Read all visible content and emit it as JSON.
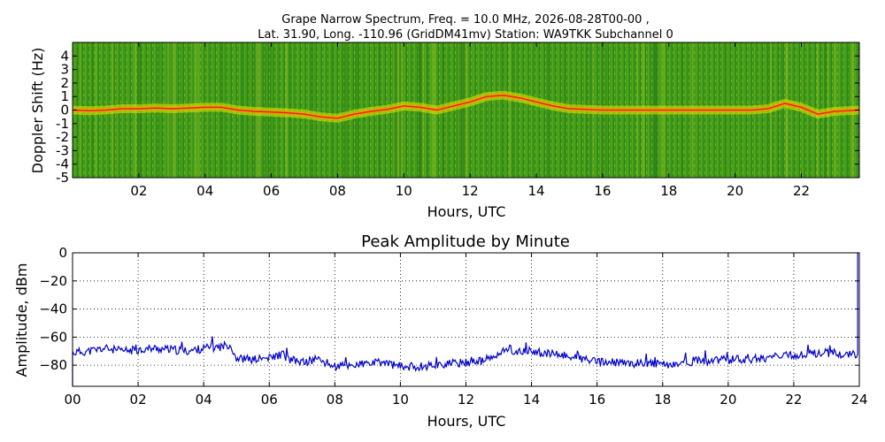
{
  "figure": {
    "title_line1": "Grape Narrow Spectrum, Freq. = 10.0 MHz, 2026-08-28T00-00 ,",
    "title_line2": "Lat.  31.90, Long. -110.96 (GridDM41mv) Station: WA9TKK Subchannel 0"
  },
  "chart_data": [
    {
      "type": "heatmap",
      "title": "",
      "xlabel": "Hours, UTC",
      "ylabel": "Doppler Shift (Hz)",
      "xlim": [
        0,
        23.75
      ],
      "ylim": [
        -5,
        5
      ],
      "xticks": [
        "02",
        "04",
        "06",
        "08",
        "10",
        "12",
        "14",
        "16",
        "18",
        "20",
        "22"
      ],
      "xtick_values": [
        2,
        4,
        6,
        8,
        10,
        12,
        14,
        16,
        18,
        20,
        22
      ],
      "yticks": [
        "4",
        "3",
        "2",
        "1",
        "0",
        "-1",
        "-2",
        "-3",
        "-4",
        "-5"
      ],
      "ytick_values": [
        4,
        3,
        2,
        1,
        0,
        -1,
        -2,
        -3,
        -4,
        -5
      ],
      "background_color": "#3f9a1a",
      "trace_colors": [
        "#e8e800",
        "#ff9900",
        "#e8251a"
      ],
      "trace": [
        {
          "t": 0.0,
          "f": 0.0
        },
        {
          "t": 0.5,
          "f": -0.05
        },
        {
          "t": 1.0,
          "f": 0.0
        },
        {
          "t": 1.5,
          "f": 0.1
        },
        {
          "t": 2.0,
          "f": 0.1
        },
        {
          "t": 2.5,
          "f": 0.15
        },
        {
          "t": 3.0,
          "f": 0.1
        },
        {
          "t": 3.5,
          "f": 0.15
        },
        {
          "t": 4.0,
          "f": 0.2
        },
        {
          "t": 4.5,
          "f": 0.2
        },
        {
          "t": 5.0,
          "f": 0.0
        },
        {
          "t": 5.5,
          "f": -0.1
        },
        {
          "t": 6.0,
          "f": -0.15
        },
        {
          "t": 6.5,
          "f": -0.2
        },
        {
          "t": 7.0,
          "f": -0.3
        },
        {
          "t": 7.5,
          "f": -0.5
        },
        {
          "t": 8.0,
          "f": -0.6
        },
        {
          "t": 8.5,
          "f": -0.3
        },
        {
          "t": 9.0,
          "f": -0.1
        },
        {
          "t": 9.5,
          "f": 0.05
        },
        {
          "t": 10.0,
          "f": 0.3
        },
        {
          "t": 10.5,
          "f": 0.2
        },
        {
          "t": 11.0,
          "f": 0.0
        },
        {
          "t": 11.5,
          "f": 0.3
        },
        {
          "t": 12.0,
          "f": 0.6
        },
        {
          "t": 12.5,
          "f": 1.0
        },
        {
          "t": 13.0,
          "f": 1.1
        },
        {
          "t": 13.5,
          "f": 0.9
        },
        {
          "t": 14.0,
          "f": 0.6
        },
        {
          "t": 14.5,
          "f": 0.3
        },
        {
          "t": 15.0,
          "f": 0.1
        },
        {
          "t": 15.5,
          "f": 0.05
        },
        {
          "t": 16.0,
          "f": 0.0
        },
        {
          "t": 17.0,
          "f": 0.0
        },
        {
          "t": 18.0,
          "f": 0.0
        },
        {
          "t": 19.0,
          "f": 0.0
        },
        {
          "t": 20.0,
          "f": 0.0
        },
        {
          "t": 20.5,
          "f": 0.0
        },
        {
          "t": 21.0,
          "f": 0.1
        },
        {
          "t": 21.5,
          "f": 0.5
        },
        {
          "t": 22.0,
          "f": 0.2
        },
        {
          "t": 22.5,
          "f": -0.3
        },
        {
          "t": 23.0,
          "f": -0.1
        },
        {
          "t": 23.75,
          "f": 0.0
        }
      ]
    },
    {
      "type": "line",
      "title": "Peak Amplitude by Minute",
      "xlabel": "Hours, UTC",
      "ylabel": "Amplitude, dBm",
      "xlim": [
        0,
        24
      ],
      "ylim": [
        -95,
        0
      ],
      "grid": true,
      "xticks": [
        "00",
        "02",
        "04",
        "06",
        "08",
        "10",
        "12",
        "14",
        "16",
        "18",
        "20",
        "22",
        "24"
      ],
      "xtick_values": [
        0,
        2,
        4,
        6,
        8,
        10,
        12,
        14,
        16,
        18,
        20,
        22,
        24
      ],
      "yticks": [
        "0",
        "−20",
        "−40",
        "−60",
        "−80"
      ],
      "ytick_values": [
        0,
        -20,
        -40,
        -60,
        -80
      ],
      "line_color": "#0000cc",
      "series": [
        {
          "x": [
            0.0,
            0.5,
            1.0,
            1.5,
            2.0,
            2.5,
            3.0,
            3.5,
            4.0,
            4.5,
            4.8,
            5.0,
            5.5,
            6.0,
            6.4,
            6.6,
            7.0,
            7.5,
            7.8,
            8.0,
            8.5,
            9.0,
            9.5,
            10.0,
            10.5,
            11.0,
            11.5,
            12.0,
            12.5,
            13.0,
            13.3,
            13.5,
            14.0,
            14.5,
            15.0,
            15.5,
            16.0,
            16.5,
            17.0,
            17.5,
            18.0,
            18.5,
            19.0,
            19.5,
            20.0,
            20.5,
            21.0,
            21.5,
            22.0,
            22.5,
            23.0,
            23.5,
            23.95
          ],
          "y": [
            -71,
            -70,
            -68,
            -70,
            -69,
            -68,
            -69,
            -70,
            -68,
            -67,
            -65,
            -75,
            -76,
            -75,
            -72,
            -76,
            -78,
            -76,
            -79,
            -81,
            -80,
            -79,
            -78,
            -81,
            -81,
            -80,
            -79,
            -78,
            -77,
            -73,
            -67,
            -71,
            -70,
            -72,
            -73,
            -75,
            -78,
            -78,
            -79,
            -78,
            -80,
            -79,
            -77,
            -77,
            -76,
            -76,
            -75,
            -74,
            -73,
            -72,
            -71,
            -72,
            -72
          ]
        }
      ]
    }
  ]
}
